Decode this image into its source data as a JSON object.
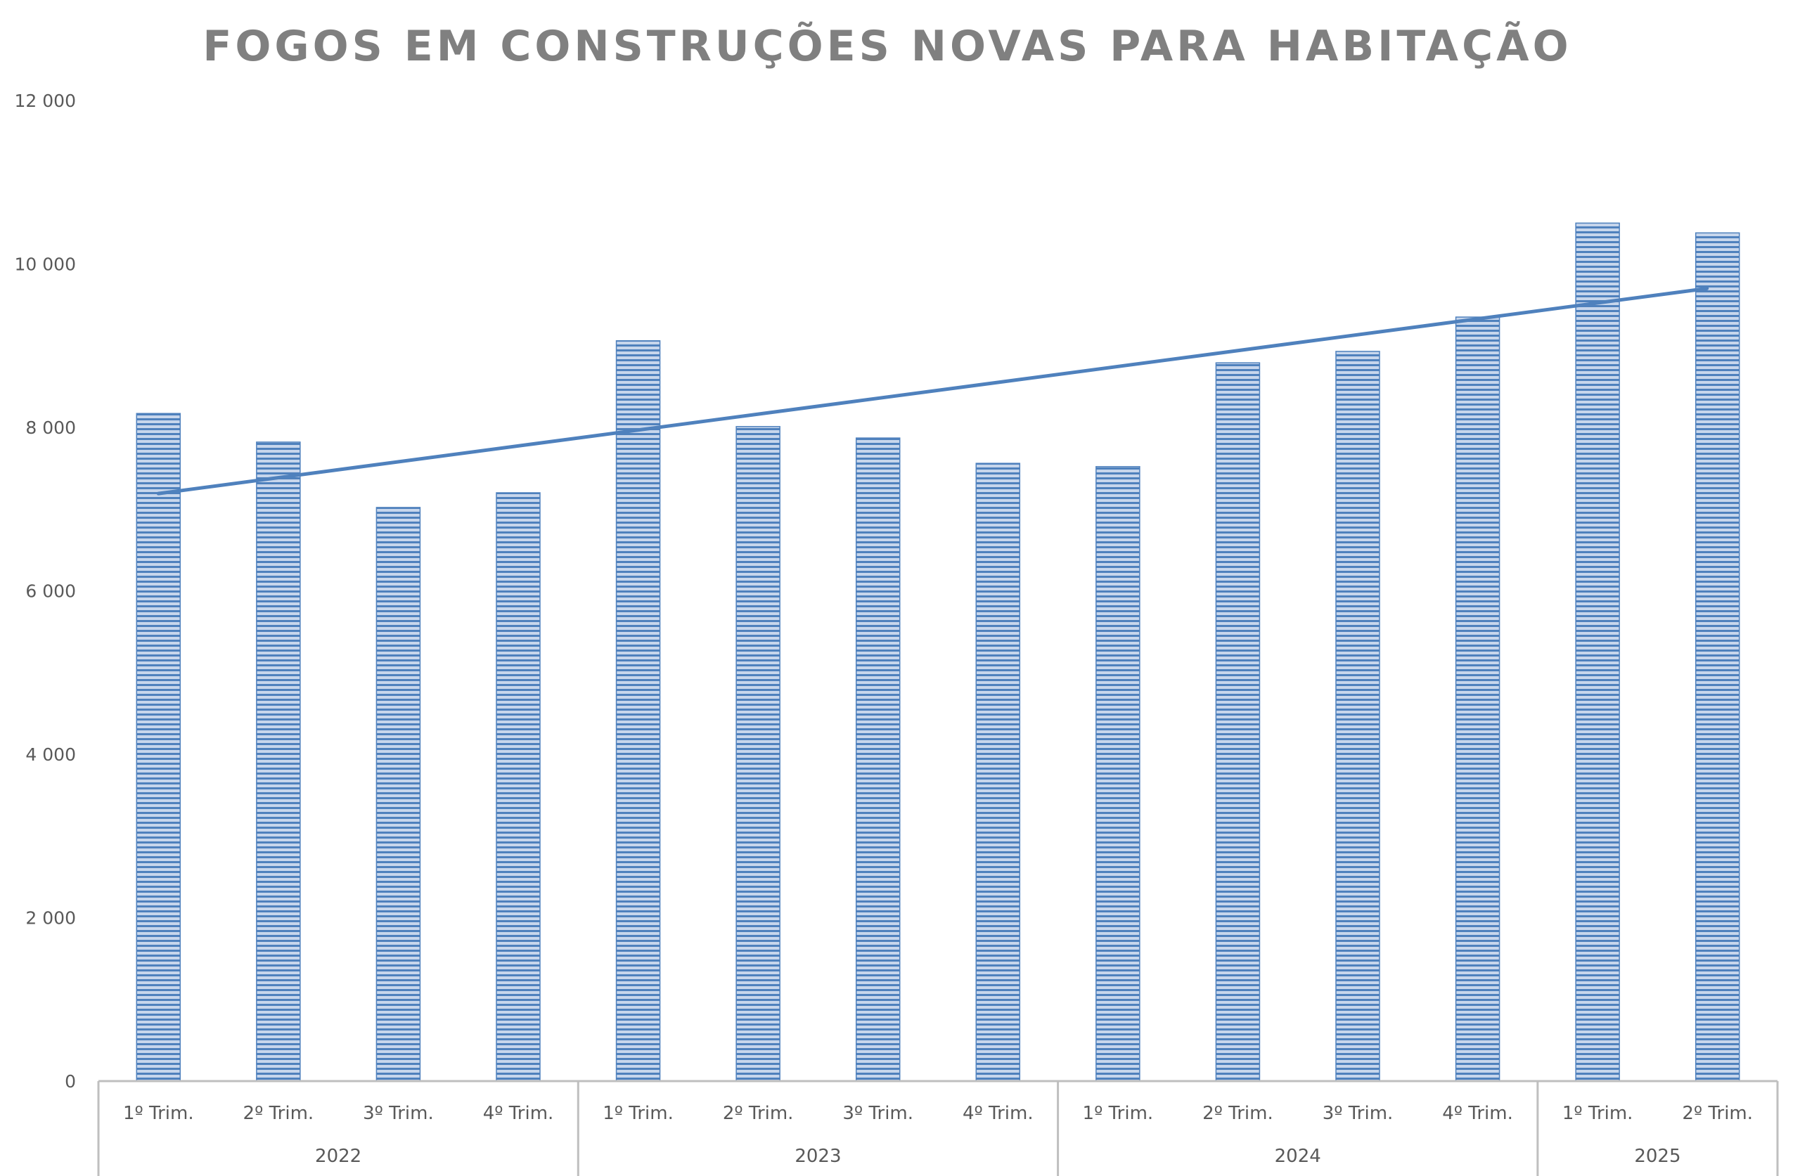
{
  "chart_data": {
    "type": "bar",
    "title": "FOGOS EM CONSTRUÇÕES NOVAS PARA HABITAÇÃO",
    "xlabel": "",
    "ylabel": "",
    "ylim": [
      0,
      12000
    ],
    "y_ticks": [
      0,
      2000,
      4000,
      6000,
      8000,
      10000,
      12000
    ],
    "y_tick_labels": [
      "0",
      "2 000",
      "4 000",
      "6 000",
      "8 000",
      "10 000",
      "12 000"
    ],
    "grid": false,
    "legend": "none",
    "groups": [
      {
        "label": "2022",
        "categories": [
          "1º Trim.",
          "2º Trim.",
          "3º Trim.",
          "4º Trim."
        ]
      },
      {
        "label": "2023",
        "categories": [
          "1º Trim.",
          "2º Trim.",
          "3º Trim.",
          "4º Trim."
        ]
      },
      {
        "label": "2024",
        "categories": [
          "1º Trim.",
          "2º Trim.",
          "3º Trim.",
          "4º Trim."
        ]
      },
      {
        "label": "2025",
        "categories": [
          "1º Trim.",
          "2º Trim."
        ]
      }
    ],
    "categories": [
      "1º Trim.",
      "2º Trim.",
      "3º Trim.",
      "4º Trim.",
      "1º Trim.",
      "2º Trim.",
      "3º Trim.",
      "4º Trim.",
      "1º Trim.",
      "2º Trim.",
      "3º Trim.",
      "4º Trim.",
      "1º Trim.",
      "2º Trim."
    ],
    "values": [
      8170,
      7820,
      7020,
      7200,
      9060,
      8010,
      7870,
      7560,
      7520,
      8790,
      8930,
      9350,
      10500,
      10380
    ],
    "trendline": {
      "type": "linear",
      "start": 7190,
      "end": 9700
    },
    "colors": {
      "bar": "#4f81bd",
      "bar_fill_light": "#c7d6ec",
      "trendline": "#4f81bd",
      "axis": "#bfbfbf",
      "text": "#595959",
      "title": "#808080"
    }
  }
}
